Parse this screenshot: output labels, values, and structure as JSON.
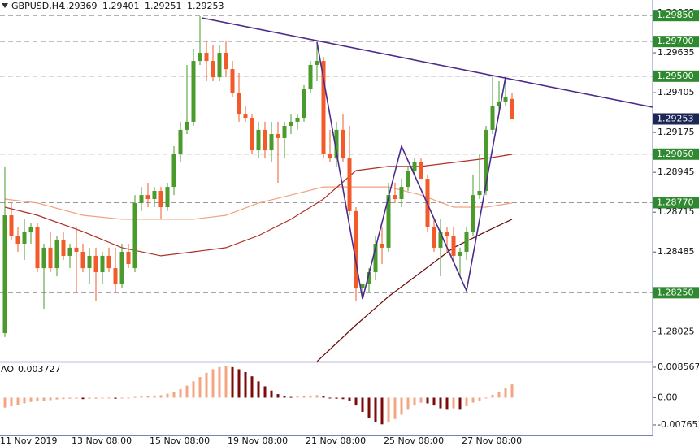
{
  "chart_data": [
    {
      "type": "candlestick",
      "title": "GBPUSD,H4",
      "categories": [
        "11 Nov 2019",
        null,
        null,
        null,
        null,
        null,
        null,
        null,
        null,
        null,
        null,
        "13 Nov 08:00",
        null,
        null,
        null,
        null,
        null,
        null,
        null,
        null,
        null,
        null,
        null,
        "15 Nov 08:00",
        null,
        null,
        null,
        null,
        null,
        null,
        null,
        null,
        null,
        null,
        null,
        "19 Nov 08:00",
        null,
        null,
        null,
        null,
        null,
        null,
        null,
        null,
        null,
        null,
        null,
        "21 Nov 08:00",
        null,
        null,
        null,
        null,
        null,
        null,
        null,
        null,
        null,
        null,
        null,
        "25 Nov 08:00",
        null,
        null,
        null,
        null,
        null,
        null,
        null,
        null,
        null,
        null,
        null,
        "27 Nov 08:00",
        null,
        null,
        null,
        null,
        null,
        null,
        null
      ],
      "ohlc": [
        [
          1.28017,
          1.28979,
          1.27994,
          1.28697
        ],
        [
          1.28697,
          1.28768,
          1.28556,
          1.2858
        ],
        [
          1.2858,
          1.28627,
          1.28486,
          1.28533
        ],
        [
          1.28533,
          1.28674,
          1.28439,
          1.28603
        ],
        [
          1.28603,
          1.2865,
          1.28533,
          1.28627
        ],
        [
          1.28627,
          1.2865,
          1.28369,
          1.28392
        ],
        [
          1.28392,
          1.28533,
          1.28158,
          1.2851
        ],
        [
          1.2851,
          1.28603,
          1.28369,
          1.28392
        ],
        [
          1.28392,
          1.2858,
          1.28345,
          1.28556
        ],
        [
          1.28556,
          1.28603,
          1.28439,
          1.28463
        ],
        [
          1.28463,
          1.28533,
          1.28392,
          1.2851
        ],
        [
          1.2851,
          1.28627,
          1.28252,
          1.28486
        ],
        [
          1.28486,
          1.28533,
          1.28369,
          1.28392
        ],
        [
          1.28392,
          1.2851,
          1.28299,
          1.28463
        ],
        [
          1.28463,
          1.2851,
          1.28205,
          1.28369
        ],
        [
          1.28369,
          1.28486,
          1.28299,
          1.28463
        ],
        [
          1.28463,
          1.2851,
          1.28369,
          1.28392
        ],
        [
          1.28392,
          1.2851,
          1.28252,
          1.28299
        ],
        [
          1.28299,
          1.28533,
          1.28275,
          1.28486
        ],
        [
          1.28486,
          1.28533,
          1.28392,
          1.28416
        ],
        [
          1.28392,
          1.28814,
          1.28369,
          1.28768
        ],
        [
          1.28768,
          1.28861,
          1.28721,
          1.28814
        ],
        [
          1.28814,
          1.28885,
          1.28744,
          1.28791
        ],
        [
          1.28791,
          1.28861,
          1.28744,
          1.28838
        ],
        [
          1.28838,
          1.28861,
          1.28674,
          1.28744
        ],
        [
          1.28744,
          1.28885,
          1.28721,
          1.28861
        ],
        [
          1.28861,
          1.29096,
          1.28814,
          1.29049
        ],
        [
          1.29049,
          1.29237,
          1.29002,
          1.2919
        ],
        [
          1.2919,
          1.29565,
          1.29166,
          1.29237
        ],
        [
          1.29237,
          1.29659,
          1.29213,
          1.29588
        ],
        [
          1.29588,
          1.29846,
          1.29565,
          1.29635
        ],
        [
          1.29635,
          1.29706,
          1.29471,
          1.29588
        ],
        [
          1.29588,
          1.29682,
          1.29471,
          1.29494
        ],
        [
          1.29494,
          1.29682,
          1.29471,
          1.29635
        ],
        [
          1.29635,
          1.29706,
          1.29494,
          1.29541
        ],
        [
          1.29541,
          1.29588,
          1.29377,
          1.29401
        ],
        [
          1.29401,
          1.29518,
          1.29237,
          1.29283
        ],
        [
          1.29283,
          1.2933,
          1.29237,
          1.2926
        ],
        [
          1.2926,
          1.29283,
          1.29049,
          1.29072
        ],
        [
          1.29072,
          1.29237,
          1.29025,
          1.2919
        ],
        [
          1.2919,
          1.29237,
          1.29025,
          1.29072
        ],
        [
          1.29072,
          1.29237,
          1.29002,
          1.29166
        ],
        [
          1.29166,
          1.29237,
          1.28885,
          1.29143
        ],
        [
          1.29143,
          1.29237,
          1.29025,
          1.29213
        ],
        [
          1.29213,
          1.29283,
          1.29166,
          1.29237
        ],
        [
          1.29237,
          1.29283,
          1.2919,
          1.2926
        ],
        [
          1.2926,
          1.29448,
          1.29237,
          1.29424
        ],
        [
          1.29424,
          1.29588,
          1.29401,
          1.29565
        ],
        [
          1.29565,
          1.29706,
          1.29471,
          1.29588
        ],
        [
          1.29588,
          1.29612,
          1.29025,
          1.29049
        ],
        [
          1.29049,
          1.2919,
          1.29002,
          1.29025
        ],
        [
          1.29025,
          1.29237,
          1.28979,
          1.2919
        ],
        [
          1.2919,
          1.29283,
          1.29002,
          1.29025
        ],
        [
          1.29025,
          1.29213,
          1.28697,
          1.28721
        ],
        [
          1.28721,
          1.28744,
          1.28205,
          1.28275
        ],
        [
          1.28275,
          1.28299,
          1.28228,
          1.28299
        ],
        [
          1.28299,
          1.28392,
          1.28252,
          1.28369
        ],
        [
          1.28369,
          1.2858,
          1.28322,
          1.28533
        ],
        [
          1.28533,
          1.28627,
          1.28416,
          1.2851
        ],
        [
          1.2851,
          1.28885,
          1.28486,
          1.28814
        ],
        [
          1.28814,
          1.28885,
          1.28768,
          1.28791
        ],
        [
          1.28791,
          1.28908,
          1.28744,
          1.28861
        ],
        [
          1.28861,
          1.28979,
          1.28838,
          1.28955
        ],
        [
          1.28955,
          1.29025,
          1.28932,
          1.29002
        ],
        [
          1.29002,
          1.29025,
          1.28908,
          1.28908
        ],
        [
          1.28908,
          1.28932,
          1.28603,
          1.28627
        ],
        [
          1.28627,
          1.28674,
          1.28486,
          1.2851
        ],
        [
          1.2851,
          1.28674,
          1.28345,
          1.28603
        ],
        [
          1.28603,
          1.28627,
          1.28486,
          1.2858
        ],
        [
          1.2858,
          1.28627,
          1.28439,
          1.28463
        ],
        [
          1.28463,
          1.2851,
          1.28345,
          1.28486
        ],
        [
          1.28486,
          1.28627,
          1.28439,
          1.28603
        ],
        [
          1.28603,
          1.28932,
          1.2858,
          1.28814
        ],
        [
          1.28814,
          1.29049,
          1.28791,
          1.28838
        ],
        [
          1.28838,
          1.29213,
          1.28814,
          1.2919
        ],
        [
          1.2919,
          1.29494,
          1.29166,
          1.2933
        ],
        [
          1.2933,
          1.29471,
          1.29307,
          1.29354
        ],
        [
          1.29354,
          1.29494,
          1.2933,
          1.29377
        ],
        [
          1.29369,
          1.29401,
          1.29251,
          1.29253
        ]
      ],
      "up_color": "#4a9a2c",
      "down_color": "#f25a2a",
      "xlim": [
        -0.75,
        99.625
      ],
      "ylim": [
        1.27853,
        1.2994
      ],
      "yticks": [
        1.29865,
        1.29635,
        1.29405,
        1.29175,
        1.28945,
        1.28715,
        1.28485,
        1.28255,
        1.28025
      ],
      "levels": [
        {
          "value": 1.2985,
          "label": "1.29850"
        },
        {
          "value": 1.297,
          "label": "1.29700"
        },
        {
          "value": 1.295,
          "label": "1.29500"
        },
        {
          "value": 1.2905,
          "label": "1.29050"
        },
        {
          "value": 1.2877,
          "label": "1.28770"
        },
        {
          "value": 1.2825,
          "label": "1.28250"
        }
      ],
      "level_color": "#2f8a2f",
      "current_price_color": "#1c2755",
      "moving_averages": [
        {
          "color": "#f2a07e",
          "x": [
            0,
            5,
            12,
            18,
            24,
            29,
            34,
            39,
            44,
            49,
            54,
            59,
            64,
            69,
            74,
            78
          ],
          "values": [
            1.28791,
            1.28768,
            1.28697,
            1.28674,
            1.28674,
            1.28674,
            1.28697,
            1.28768,
            1.28814,
            1.28861,
            1.28861,
            1.28861,
            1.28814,
            1.28744,
            1.28744,
            1.28768
          ]
        },
        {
          "color": "#b0302a",
          "x": [
            0,
            5,
            12,
            18,
            24,
            29,
            34,
            39,
            44,
            49,
            54,
            59,
            64,
            69,
            74,
            78
          ],
          "values": [
            1.28744,
            1.28697,
            1.28603,
            1.2851,
            1.28463,
            1.28486,
            1.2851,
            1.2858,
            1.28674,
            1.28791,
            1.28955,
            1.28979,
            1.28979,
            1.29002,
            1.29025,
            1.29049
          ]
        },
        {
          "color": "#6b0a0a",
          "x": [
            48,
            54,
            59,
            64,
            69,
            74,
            78
          ],
          "values": [
            1.27853,
            1.28064,
            1.28228,
            1.28369,
            1.2851,
            1.28603,
            1.28674
          ]
        }
      ],
      "trendlines": [
        {
          "color": "#4b2c8c",
          "x": [
            30.25,
            99.625
          ],
          "values": [
            1.29837,
            1.29321
          ]
        },
        {
          "color": "#4b2c8c",
          "x": [
            48,
            55,
            61,
            71,
            77
          ],
          "values": [
            1.29696,
            1.28214,
            1.29096,
            1.28261,
            1.29494
          ]
        }
      ]
    },
    {
      "type": "histogram",
      "title": "AO",
      "values": [
        -0.0028,
        -0.0024,
        -0.002,
        -0.0016,
        -0.0012,
        -0.001,
        -0.0008,
        -0.0007,
        -0.0005,
        -0.0004,
        -0.0003,
        -0.0003,
        -0.0004,
        -0.0003,
        -0.0003,
        -0.0002,
        -0.0002,
        -0.0003,
        -0.0002,
        -0.0001,
        0.0002,
        0.0003,
        0.0004,
        0.0006,
        0.0007,
        0.0011,
        0.0016,
        0.0024,
        0.0034,
        0.0046,
        0.0058,
        0.007,
        0.008,
        0.0086,
        0.0088,
        0.0086,
        0.008,
        0.0072,
        0.006,
        0.0046,
        0.0032,
        0.002,
        0.001,
        0.0004,
        0.0002,
        0.0003,
        0.0004,
        0.0006,
        0.0007,
        0.0004,
        0.0,
        -0.0003,
        -0.0004,
        -0.0008,
        -0.0022,
        -0.004,
        -0.0056,
        -0.0068,
        -0.0075,
        -0.007,
        -0.006,
        -0.0048,
        -0.0034,
        -0.0022,
        -0.0014,
        -0.0016,
        -0.0022,
        -0.003,
        -0.0034,
        -0.003,
        -0.0034,
        -0.0024,
        -0.0014,
        -0.0008,
        -0.0002,
        0.0008,
        0.0016,
        0.0027,
        0.003727
      ],
      "up_color": "#f4a582",
      "down_color": "#7d0a0a",
      "xlim": [
        -0.75,
        99.625
      ],
      "ylim": [
        -0.0104,
        0.0097
      ],
      "yticks": [
        0.008567,
        {
          "value": 0,
          "label": "0.00"
        },
        -0.007653
      ]
    }
  ]
}
